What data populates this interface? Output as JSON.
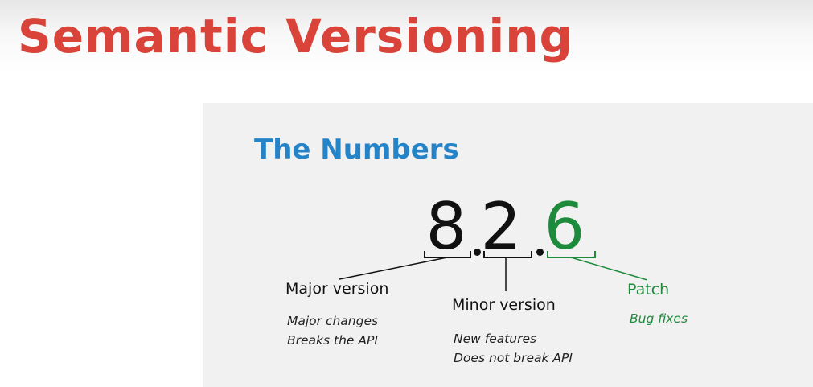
{
  "slide": {
    "title": "Semantic Versioning",
    "title_color": "#d9433a"
  },
  "panel": {
    "title": "The Numbers",
    "title_color": "#2583c8",
    "background": "#f1f1f1"
  },
  "version": {
    "major": "8",
    "minor": "2",
    "patch": "6",
    "patch_color": "#1e8a3c"
  },
  "parts": {
    "major": {
      "label": "Major version",
      "notes": [
        "Major changes",
        "Breaks the API"
      ]
    },
    "minor": {
      "label": "Minor version",
      "notes": [
        "New features",
        "Does not break API"
      ]
    },
    "patch": {
      "label": "Patch",
      "notes": [
        "Bug fixes"
      ]
    }
  }
}
